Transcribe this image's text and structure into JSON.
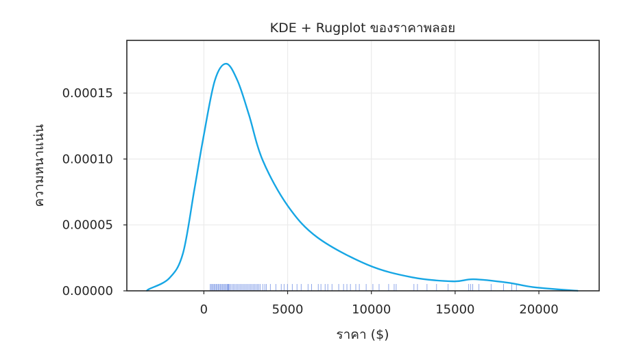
{
  "chart_data": {
    "type": "line",
    "title": "KDE + Rugplot ของราคาพลอย",
    "xlabel": "ราคา ($)",
    "ylabel": "ความหนาแน่น",
    "xlim": [
      -4600,
      23600
    ],
    "ylim": [
      0,
      0.00019
    ],
    "xticks": [
      0,
      5000,
      10000,
      15000,
      20000
    ],
    "xtick_labels": [
      "0",
      "5000",
      "10000",
      "15000",
      "20000"
    ],
    "yticks": [
      0,
      5e-05,
      0.0001,
      0.00015
    ],
    "ytick_labels": [
      "0.00000",
      "0.00005",
      "0.00010",
      "0.00015"
    ],
    "grid": true,
    "colors": {
      "kde": "#16a6e4",
      "rug": "#1f4fd6",
      "axes": "#262626",
      "grid": "#ebebeb"
    },
    "kde": {
      "x": [
        -3350,
        -3290,
        -2070,
        -1250,
        -570,
        -30,
        650,
        1330,
        2010,
        2690,
        3510,
        5000,
        6780,
        9770,
        12420,
        14880,
        16100,
        18140,
        19780,
        22340
      ],
      "y": [
        0,
        1.2e-06,
        9.5e-06,
        2.84e-05,
        7.67e-05,
        0.0001163,
        0.0001594,
        0.0001723,
        0.0001594,
        0.0001336,
        9.91e-05,
        6.46e-05,
        4.05e-05,
        1.98e-05,
        1.03e-05,
        7.2e-06,
        8.8e-06,
        6.2e-06,
        2.6e-06,
        0
      ]
    },
    "rug": [
      380,
      440,
      500,
      560,
      620,
      680,
      740,
      800,
      860,
      920,
      980,
      1040,
      1100,
      1160,
      1220,
      1280,
      1340,
      1400,
      1440,
      1480,
      1520,
      1600,
      1680,
      1760,
      1840,
      1920,
      2000,
      2080,
      2160,
      2240,
      2320,
      2400,
      2480,
      2560,
      2640,
      2720,
      2800,
      2880,
      2960,
      3040,
      3120,
      3200,
      3280,
      3360,
      3520,
      3640,
      3730,
      3970,
      4300,
      4620,
      4790,
      4990,
      5280,
      5560,
      5810,
      6220,
      6430,
      6830,
      6990,
      7240,
      7400,
      7650,
      8050,
      8340,
      8540,
      8750,
      9070,
      9280,
      9690,
      10090,
      10460,
      11030,
      11360,
      11480,
      12540,
      12750,
      13320,
      13890,
      14580,
      15810,
      15930,
      16050,
      16420,
      17150,
      17890,
      18380,
      18660
    ]
  }
}
